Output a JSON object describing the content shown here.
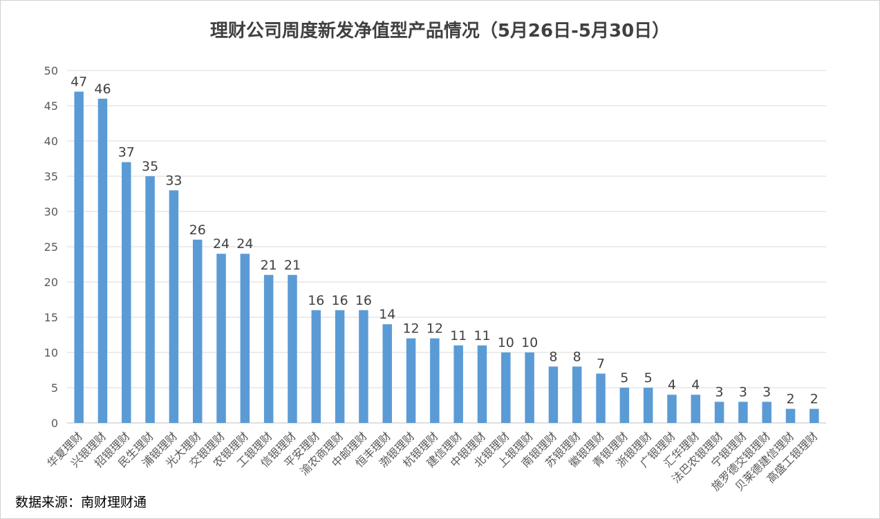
{
  "chart_data": {
    "type": "bar",
    "title": "理财公司周度新发净值型产品情况（5月26日-5月30日）",
    "categories": [
      "华夏理财",
      "兴银理财",
      "招银理财",
      "民生理财",
      "浦银理财",
      "光大理财",
      "交银理财",
      "农银理财",
      "工银理财",
      "信银理财",
      "平安理财",
      "渝农商理财",
      "中邮理财",
      "恒丰理财",
      "渤银理财",
      "杭银理财",
      "建信理财",
      "中银理财",
      "北银理财",
      "上银理财",
      "南银理财",
      "苏银理财",
      "徽银理财",
      "青银理财",
      "浙银理财",
      "广银理财",
      "汇华理财",
      "法巴农银理财",
      "宁银理财",
      "施罗德交银理财",
      "贝莱德建信理财",
      "高盛工银理财"
    ],
    "values": [
      47,
      46,
      37,
      35,
      33,
      26,
      24,
      24,
      21,
      21,
      16,
      16,
      16,
      14,
      12,
      12,
      11,
      11,
      10,
      10,
      8,
      8,
      7,
      5,
      5,
      4,
      4,
      3,
      3,
      3,
      2,
      2
    ],
    "ylim": [
      0,
      50
    ],
    "yticks": [
      0,
      5,
      10,
      15,
      20,
      25,
      30,
      35,
      40,
      45,
      50
    ],
    "grid": true,
    "legend": "none",
    "bar_color": "#5b9bd5",
    "xlabel": "",
    "ylabel": ""
  },
  "footer": {
    "source": "数据来源：南财理财通"
  }
}
